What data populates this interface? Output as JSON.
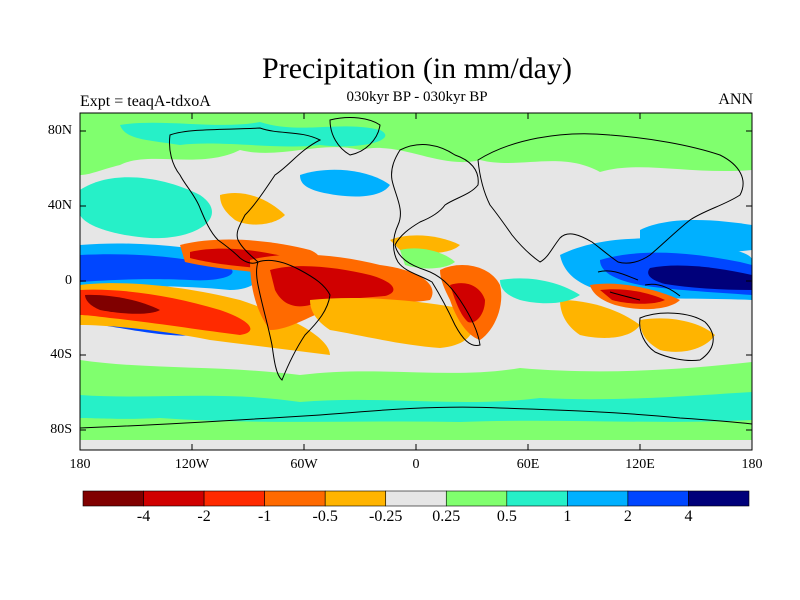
{
  "figure": {
    "title": "Precipitation (in mm/day)",
    "subtitle": "030kyr BP - 030kyr BP",
    "left_string": "Expt = teaqA-tdxoA",
    "right_string": "ANN"
  },
  "axes": {
    "lat_ticks": [
      "80N",
      "40N",
      "0",
      "40S",
      "80S"
    ],
    "lon_ticks": [
      "180",
      "120W",
      "60W",
      "0",
      "60E",
      "120E",
      "180"
    ]
  },
  "colorbar": {
    "colors": [
      "#800000",
      "#d00000",
      "#ff2a00",
      "#ff6a00",
      "#ffb400",
      "#e6e6e6",
      "#80ff6e",
      "#26f0c8",
      "#00b0ff",
      "#0046ff",
      "#00007a"
    ],
    "labels": [
      "-4",
      "-2",
      "-1",
      "-0.5",
      "-0.25",
      "0.25",
      "0.5",
      "1",
      "2",
      "4"
    ]
  },
  "map_colors": {
    "ocean_neutral": "#e6e6e6",
    "coast": "#000000"
  }
}
